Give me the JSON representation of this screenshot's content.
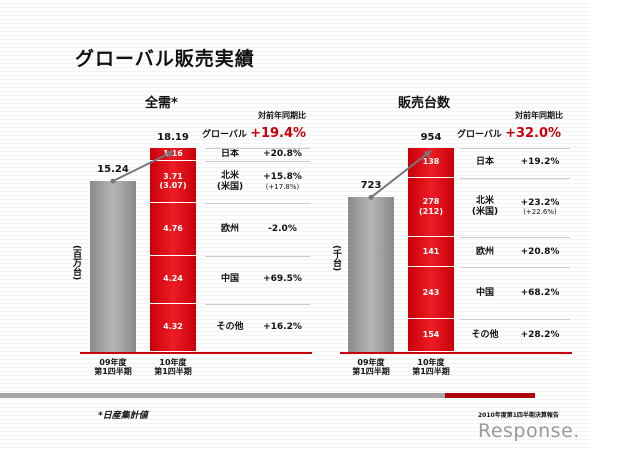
{
  "title": "グローバル販売実績",
  "chart_data": [
    {
      "type": "bar",
      "title": "全需*",
      "ylabel": "(百万台)",
      "comparison_header": "対前年同期比",
      "categories": [
        "09年度\n第1四半期",
        "10年度\n第1四半期"
      ],
      "totals": [
        "15.24",
        "18.19"
      ],
      "total_values": [
        15.24,
        18.19
      ],
      "global": {
        "label": "グローバル",
        "change": "+19.4%"
      },
      "segments": [
        {
          "region": "日本",
          "value": 1.16,
          "label": "1.16",
          "change": "+20.8%"
        },
        {
          "region": "北米",
          "region_sub": "(米国)",
          "value": 3.71,
          "label": "3.71",
          "label_sub": "(3.07)",
          "change": "+15.8%",
          "change_sub": "(+17.8%)"
        },
        {
          "region": "欧州",
          "value": 4.76,
          "label": "4.76",
          "change": "-2.0%"
        },
        {
          "region": "中国",
          "value": 4.24,
          "label": "4.24",
          "change": "+69.5%"
        },
        {
          "region": "その他",
          "value": 4.32,
          "label": "4.32",
          "change": "+16.2%"
        }
      ]
    },
    {
      "type": "bar",
      "title": "販売台数",
      "ylabel": "(千台)",
      "comparison_header": "対前年同期比",
      "categories": [
        "09年度\n第1四半期",
        "10年度\n第1四半期"
      ],
      "totals": [
        "723",
        "954"
      ],
      "total_values": [
        723,
        954
      ],
      "global": {
        "label": "グローバル",
        "change": "+32.0%"
      },
      "segments": [
        {
          "region": "日本",
          "value": 138,
          "label": "138",
          "change": "+19.2%"
        },
        {
          "region": "北米",
          "region_sub": "(米国)",
          "value": 278,
          "label": "278",
          "label_sub": "(212)",
          "change": "+23.2%",
          "change_sub": "(+22.6%)"
        },
        {
          "region": "欧州",
          "value": 141,
          "label": "141",
          "change": "+20.8%"
        },
        {
          "region": "中国",
          "value": 243,
          "label": "243",
          "change": "+68.2%"
        },
        {
          "region": "その他",
          "value": 154,
          "label": "154",
          "change": "+28.2%"
        }
      ]
    }
  ],
  "footer": {
    "note": "*日産集計値",
    "report": "2010年度第1四半期決算報告",
    "logo": "Response."
  },
  "colors": {
    "accent": "#c8000a",
    "gray": "#a6a6a6"
  }
}
